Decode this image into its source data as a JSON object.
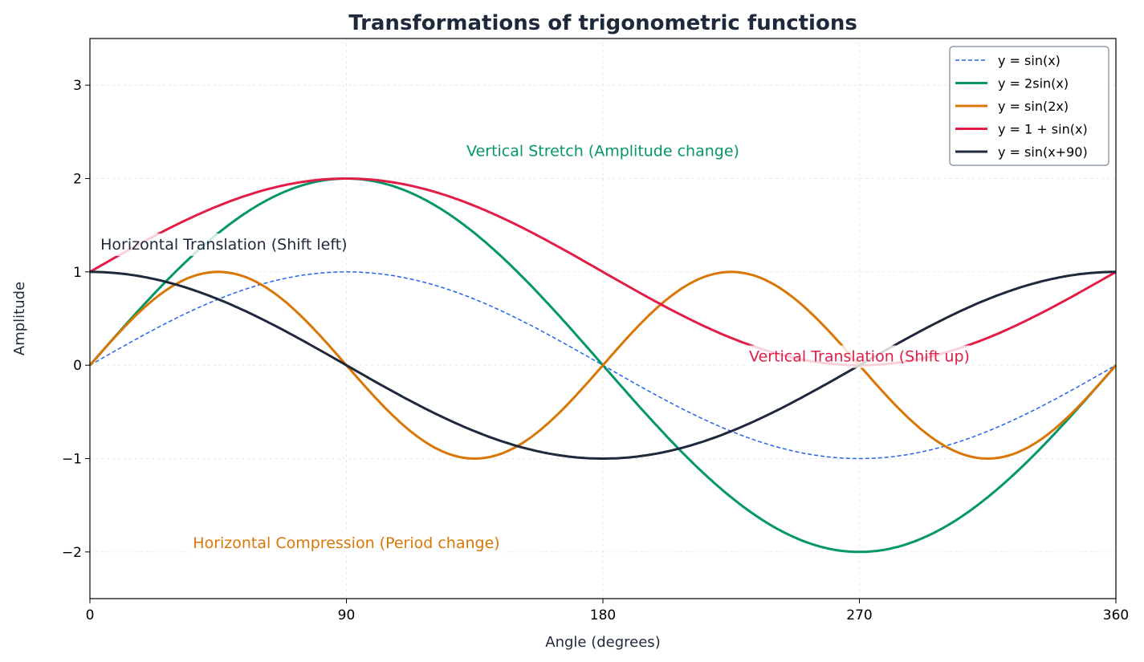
{
  "chart_data": {
    "type": "line",
    "title": "Transformations of trigonometric functions",
    "xlabel": "Angle (degrees)",
    "ylabel": "Amplitude",
    "xlim": [
      0,
      360
    ],
    "ylim": [
      -2.5,
      3.5
    ],
    "xticks": [
      0,
      90,
      180,
      270,
      360
    ],
    "yticks": [
      -2,
      -1,
      0,
      1,
      2,
      3
    ],
    "ytick_labels": [
      "−2",
      "−1",
      "0",
      "1",
      "2",
      "3"
    ],
    "grid": true,
    "legend_placement": "top-right",
    "series": [
      {
        "name": "y = sin(x)",
        "function": "sin(x)",
        "color": "#2563eb",
        "style": "dashed"
      },
      {
        "name": "y = 2sin(x)",
        "function": "2sin(x)",
        "color": "#059669",
        "style": "solid"
      },
      {
        "name": "y = sin(2x)",
        "function": "sin(2x)",
        "color": "#d97706",
        "style": "solid"
      },
      {
        "name": "y = 1 + sin(x)",
        "function": "1 + sin(x)",
        "color": "#e11d48",
        "style": "solid"
      },
      {
        "name": "y = sin(x+90)",
        "function": "sin(x+90)",
        "color": "#1e293b",
        "style": "solid"
      }
    ],
    "annotations": [
      {
        "text": "Vertical Stretch (Amplitude change)",
        "x": 180,
        "y": 2.3,
        "color": "#059669"
      },
      {
        "text": "Horizontal Translation (Shift left)",
        "x": 47,
        "y": 1.3,
        "color": "#1e293b"
      },
      {
        "text": "Vertical Translation (Shift up)",
        "x": 270,
        "y": 0.1,
        "color": "#e11d48"
      },
      {
        "text": "Horizontal Compression (Period change)",
        "x": 90,
        "y": -1.9,
        "color": "#d97706"
      }
    ]
  }
}
